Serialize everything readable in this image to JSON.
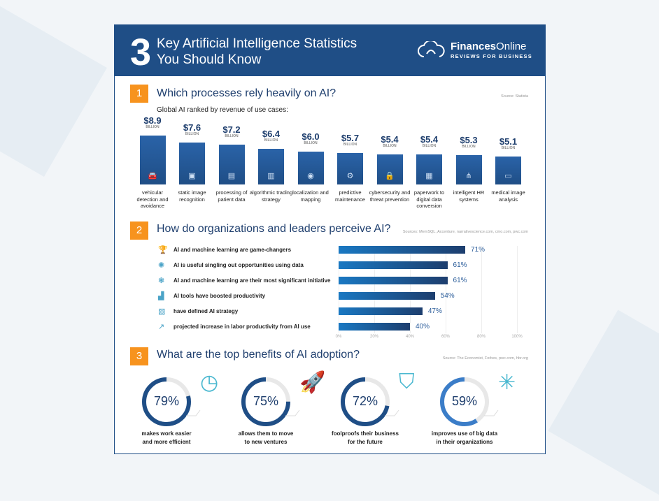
{
  "header": {
    "number": "3",
    "title_line1": "Key Artificial Intelligence Statistics",
    "title_line2": "You Should Know",
    "logo_brand_bold": "Finances",
    "logo_brand": "Online",
    "logo_tagline": "REVIEWS FOR BUSINESS"
  },
  "section1": {
    "number": "1",
    "title": "Which processes rely heavily on AI?",
    "source": "Source: Statista",
    "subtitle": "Global AI ranked by revenue of use cases:"
  },
  "section2": {
    "number": "2",
    "title": "How do organizations and leaders perceive AI?",
    "source": "Sources: MemSQL, Accenture, narrativescience.com, cmo.com, pwc.com"
  },
  "section3": {
    "number": "3",
    "title": "What are the top benefits of AI adoption?",
    "source": "Source: The Economist, Forbes, pwc.com, hbr.org"
  },
  "colors": {
    "primary": "#1f4e86",
    "accent": "#f7931e",
    "icon": "#4ab8d0",
    "donut_light": "#3b7dc8"
  },
  "chart_data": [
    {
      "type": "bar",
      "unit": "BILLION",
      "categories": [
        "vehicular detection and avoidance",
        "static image recognition",
        "processing of patient data",
        "algorithmic trading strategy",
        "localization and mapping",
        "predictive maintenance",
        "cybersecurity and threat prevention",
        "paperwork to digital data conversion",
        "intelligent HR systems",
        "medical image analysis"
      ],
      "labels": [
        "$8.9",
        "$7.6",
        "$7.2",
        "$6.4",
        "$6.0",
        "$5.7",
        "$5.4",
        "$5.4",
        "$5.3",
        "$5.1"
      ],
      "values": [
        8.9,
        7.6,
        7.2,
        6.4,
        6.0,
        5.7,
        5.4,
        5.4,
        5.3,
        5.1
      ],
      "icons": [
        "car-icon",
        "image-icon",
        "certificate-icon",
        "tablet-chart-icon",
        "location-pin-icon",
        "gears-icon",
        "lock-icon",
        "document-icon",
        "people-network-icon",
        "monitor-icon"
      ]
    },
    {
      "type": "bar",
      "orientation": "horizontal",
      "categories": [
        "AI and machine learning are game-changers",
        "AI is useful singling out opportunities using data",
        "AI and machine learning are their most significant initiative",
        "AI tools have boosted productivity",
        "have defined AI strategy",
        "projected increase in labor productivity from AI use"
      ],
      "values": [
        71,
        61,
        61,
        54,
        47,
        40
      ],
      "labels": [
        "71%",
        "61%",
        "61%",
        "54%",
        "47%",
        "40%"
      ],
      "xticks": [
        "0%",
        "20%",
        "40%",
        "60%",
        "80%",
        "100%"
      ],
      "xlim": [
        0,
        100
      ],
      "grid": true,
      "icons": [
        "trophy-icon",
        "brain-circuit-icon",
        "brain-gears-icon",
        "growth-chart-icon",
        "puzzle-icon",
        "trend-chart-icon"
      ]
    },
    {
      "type": "pie",
      "style": "donut",
      "values": [
        79,
        75,
        72,
        59
      ],
      "labels": [
        "79%",
        "75%",
        "72%",
        "59%"
      ],
      "captions": [
        [
          "makes work easier",
          "and more efficient"
        ],
        [
          "allows them to move",
          "to new ventures"
        ],
        [
          "foolproofs their business",
          "for the future"
        ],
        [
          "improves use of big data",
          "in their organizations"
        ]
      ],
      "icons": [
        "dashboard-icon",
        "rocket-icon",
        "shield-check-icon",
        "network-icon"
      ]
    }
  ]
}
